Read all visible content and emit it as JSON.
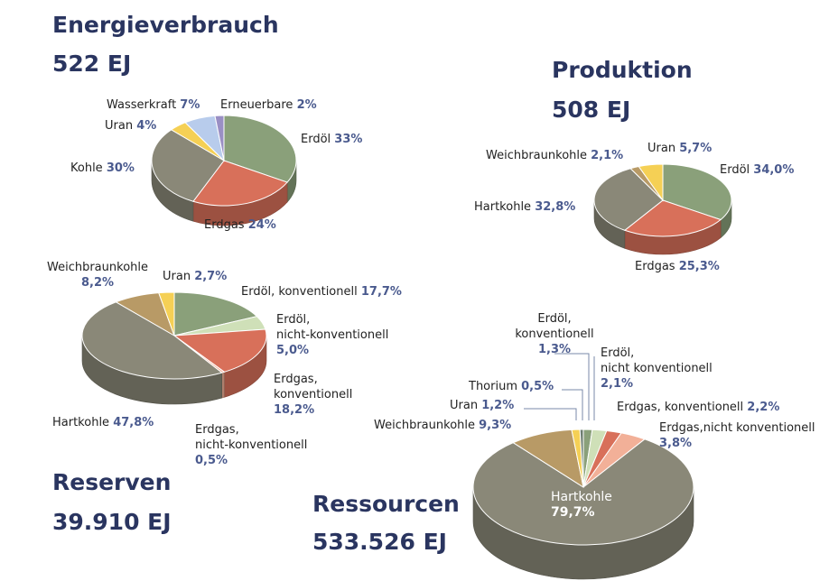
{
  "colors": {
    "heading": "#2a3560",
    "percent": "#4a5a8e",
    "oil": "#8aa07a",
    "oil_unconventional": "#cfe0b8",
    "gas": "#d8705a",
    "gas_unconventional": "#f2b098",
    "coal": "#8a8878",
    "lignite": "#b89a66",
    "uranium": "#f5d055",
    "thorium": "#6e7d70",
    "hydro": "#b8ccec",
    "renewables": "#9a8fc4"
  },
  "chart_data": [
    {
      "type": "pie",
      "title": "Energieverbrauch",
      "subtitle": "522 EJ",
      "slices": [
        {
          "label": "Erdöl",
          "value": 33,
          "value_text": "33%",
          "color": "#8aa07a"
        },
        {
          "label": "Erdgas",
          "value": 24,
          "value_text": "24%",
          "color": "#d8705a"
        },
        {
          "label": "Kohle",
          "value": 30,
          "value_text": "30%",
          "color": "#8a8878"
        },
        {
          "label": "Uran",
          "value": 4,
          "value_text": "4%",
          "color": "#f5d055"
        },
        {
          "label": "Wasserkraft",
          "value": 7,
          "value_text": "7%",
          "color": "#b8ccec"
        },
        {
          "label": "Erneuerbare",
          "value": 2,
          "value_text": "2%",
          "color": "#9a8fc4"
        }
      ]
    },
    {
      "type": "pie",
      "title": "Produktion",
      "subtitle": "508 EJ",
      "slices": [
        {
          "label": "Erdöl",
          "value": 34.0,
          "value_text": "34,0%",
          "color": "#8aa07a"
        },
        {
          "label": "Erdgas",
          "value": 25.3,
          "value_text": "25,3%",
          "color": "#d8705a"
        },
        {
          "label": "Hartkohle",
          "value": 32.8,
          "value_text": "32,8%",
          "color": "#8a8878"
        },
        {
          "label": "Weichbraunkohle",
          "value": 2.1,
          "value_text": "2,1%",
          "color": "#b89a66"
        },
        {
          "label": "Uran",
          "value": 5.7,
          "value_text": "5,7%",
          "color": "#f5d055"
        }
      ]
    },
    {
      "type": "pie",
      "title": "Reserven",
      "subtitle": "39.910 EJ",
      "slices": [
        {
          "label": "Erdöl, konventionell",
          "value": 17.7,
          "value_text": "17,7%",
          "color": "#8aa07a"
        },
        {
          "label": "Erdöl, nicht-konventionell",
          "value": 5.0,
          "value_text": "5,0%",
          "color": "#cfe0b8"
        },
        {
          "label": "Erdgas, konventionell",
          "value": 18.2,
          "value_text": "18,2%",
          "color": "#d8705a"
        },
        {
          "label": "Erdgas, nicht-konventionell",
          "value": 0.5,
          "value_text": "0,5%",
          "color": "#f2b098"
        },
        {
          "label": "Hartkohle",
          "value": 47.8,
          "value_text": "47,8%",
          "color": "#8a8878"
        },
        {
          "label": "Weichbraunkohle",
          "value": 8.2,
          "value_text": "8,2%",
          "color": "#b89a66"
        },
        {
          "label": "Uran",
          "value": 2.7,
          "value_text": "2,7%",
          "color": "#f5d055"
        }
      ]
    },
    {
      "type": "pie",
      "title": "Ressourcen",
      "subtitle": "533.526 EJ",
      "slices": [
        {
          "label": "Erdöl, konventionell",
          "value": 1.3,
          "value_text": "1,3%",
          "color": "#8aa07a"
        },
        {
          "label": "Erdöl, nicht konventionell",
          "value": 2.1,
          "value_text": "2,1%",
          "color": "#cfe0b8"
        },
        {
          "label": "Erdgas, konventionell",
          "value": 2.2,
          "value_text": "2,2%",
          "color": "#d8705a"
        },
        {
          "label": "Erdgas,nicht konventionell",
          "value": 3.8,
          "value_text": "3,8%",
          "color": "#f2b098"
        },
        {
          "label": "Hartkohle",
          "value": 79.7,
          "value_text": "79,7%",
          "color": "#8a8878"
        },
        {
          "label": "Weichbraunkohle",
          "value": 9.3,
          "value_text": "9,3%",
          "color": "#b89a66"
        },
        {
          "label": "Uran",
          "value": 1.2,
          "value_text": "1,2%",
          "color": "#f5d055"
        },
        {
          "label": "Thorium",
          "value": 0.5,
          "value_text": "0,5%",
          "color": "#6e7d70"
        }
      ]
    }
  ]
}
